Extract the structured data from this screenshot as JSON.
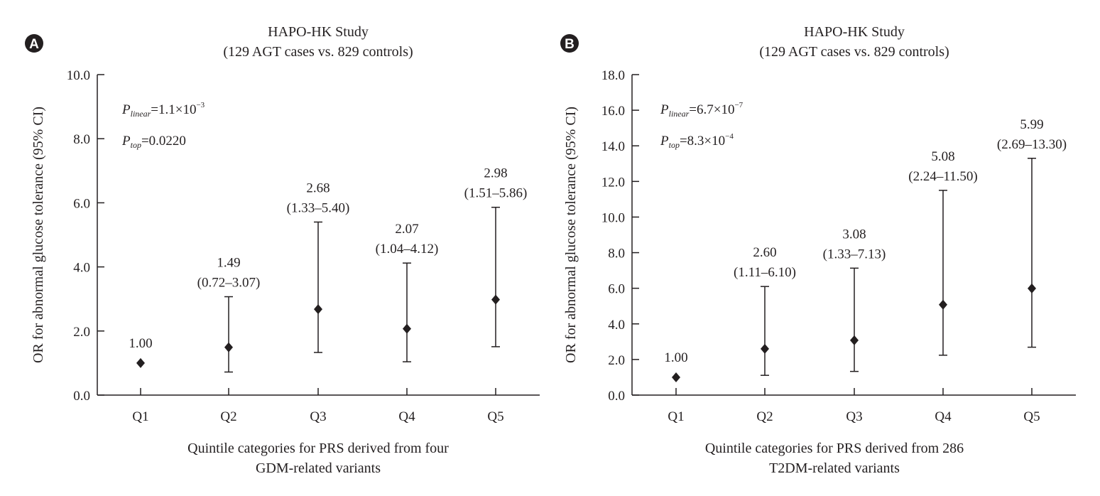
{
  "chart_data": [
    {
      "type": "scatter",
      "panel_label": "A",
      "title": "HAPO-HK Study",
      "subtitle": "(129 AGT cases vs. 829 controls)",
      "ylabel": "OR for abnormal glucose tolerance (95% CI)",
      "xlabel_lines": [
        "Quintile categories for PRS derived from four",
        "GDM-related variants"
      ],
      "ylim": [
        0,
        10
      ],
      "yticks": [
        0,
        2,
        4,
        6,
        8,
        10
      ],
      "ytick_labels": [
        "0.0",
        "2.0",
        "4.0",
        "6.0",
        "8.0",
        "10.0"
      ],
      "categories": [
        "Q1",
        "Q2",
        "Q3",
        "Q4",
        "Q5"
      ],
      "or": [
        1.0,
        1.49,
        2.68,
        2.07,
        2.98
      ],
      "ci_low": [
        null,
        0.72,
        1.33,
        1.04,
        1.51
      ],
      "ci_high": [
        null,
        3.07,
        5.4,
        4.12,
        5.86
      ],
      "value_labels": [
        "1.00",
        "1.49",
        "2.68",
        "2.07",
        "2.98"
      ],
      "ci_labels": [
        "",
        "(0.72–3.07)",
        "(1.33–5.40)",
        "(1.04–4.12)",
        "(1.51–5.86)"
      ],
      "annotations": [
        {
          "p": "P",
          "sub": "linear",
          "value": "=1.1×10",
          "exp": "−3"
        },
        {
          "p": "P",
          "sub": "top",
          "value": "=0.0220",
          "exp": ""
        }
      ]
    },
    {
      "type": "scatter",
      "panel_label": "B",
      "title": "HAPO-HK Study",
      "subtitle": "(129 AGT cases vs. 829 controls)",
      "ylabel": "OR for abnormal glucose tolerance (95% CI)",
      "xlabel_lines": [
        "Quintile categories for PRS derived from 286",
        "T2DM-related variants"
      ],
      "ylim": [
        0,
        18
      ],
      "yticks": [
        0,
        2,
        4,
        6,
        8,
        10,
        12,
        14,
        16,
        18
      ],
      "ytick_labels": [
        "0.0",
        "2.0",
        "4.0",
        "6.0",
        "8.0",
        "10.0",
        "12.0",
        "14.0",
        "16.0",
        "18.0"
      ],
      "categories": [
        "Q1",
        "Q2",
        "Q3",
        "Q4",
        "Q5"
      ],
      "or": [
        1.0,
        2.6,
        3.08,
        5.08,
        5.99
      ],
      "ci_low": [
        null,
        1.11,
        1.33,
        2.24,
        2.69
      ],
      "ci_high": [
        null,
        6.1,
        7.13,
        11.5,
        13.3
      ],
      "value_labels": [
        "1.00",
        "2.60",
        "3.08",
        "5.08",
        "5.99"
      ],
      "ci_labels": [
        "",
        "(1.11–6.10)",
        "(1.33–7.13)",
        "(2.24–11.50)",
        "(2.69–13.30)"
      ],
      "annotations": [
        {
          "p": "P",
          "sub": "linear",
          "value": "=6.7×10",
          "exp": "−7"
        },
        {
          "p": "P",
          "sub": "top",
          "value": "=8.3×10",
          "exp": "−4"
        }
      ]
    }
  ]
}
